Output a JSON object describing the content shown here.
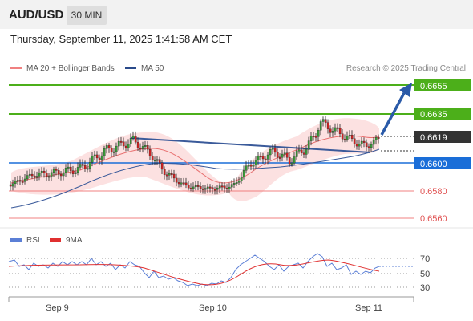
{
  "header": {
    "pair": "AUD/USD",
    "timeframe": "30 MIN"
  },
  "timestamp": "Thursday, September 11, 2025 1:41:58 AM CET",
  "legend": {
    "ma20": {
      "label": "MA 20 + Bollinger Bands",
      "color": "#f08080"
    },
    "ma50": {
      "label": "MA 50",
      "color": "#2a4a8a"
    },
    "credit": "Research © 2025 Trading Central"
  },
  "levels": [
    {
      "value": "0.6655",
      "kind": "target",
      "color": "#4caf1a"
    },
    {
      "value": "0.6635",
      "kind": "target",
      "color": "#4caf1a"
    },
    {
      "value": "0.6619",
      "kind": "current",
      "color": "#333333"
    },
    {
      "value": "0.6600",
      "kind": "pivot",
      "color": "#1a6ed8"
    },
    {
      "value": "0.6580",
      "kind": "support",
      "color": "#e05050"
    },
    {
      "value": "0.6560",
      "kind": "support",
      "color": "#e05050"
    }
  ],
  "rsi_panel": {
    "rsi_label": "RSI",
    "rsi_color": "#5b7fd6",
    "ma_label": "9MA",
    "ma_color": "#e03030",
    "ticks": [
      "70",
      "50",
      "30"
    ]
  },
  "x_axis": {
    "labels": [
      "Sep 9",
      "Sep 10",
      "Sep 11"
    ]
  }
}
